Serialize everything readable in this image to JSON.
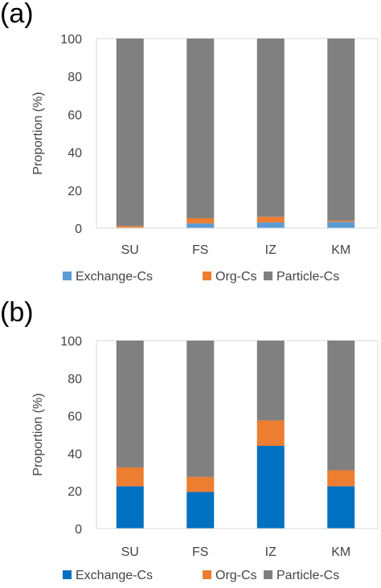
{
  "charts": [
    {
      "panel_label": "(a)",
      "legend": [
        "Exchange-Cs",
        "Org-Cs",
        "Particle-Cs"
      ]
    },
    {
      "panel_label": "(b)",
      "legend": [
        "Exchange-Cs",
        "Org-Cs",
        "Particle-Cs"
      ]
    }
  ],
  "chart_data": [
    {
      "type": "bar",
      "stacked": true,
      "categories": [
        "SU",
        "FS",
        "IZ",
        "KM"
      ],
      "ylabel": "Proportion (%)",
      "ylim": [
        0,
        100
      ],
      "yticks": [
        0,
        20,
        40,
        60,
        80,
        100
      ],
      "series": [
        {
          "name": "Exchange-Cs",
          "color": "#5b9bd5",
          "values": [
            0.3,
            2.5,
            3.0,
            3.3
          ]
        },
        {
          "name": "Org-Cs",
          "color": "#ed7d31",
          "values": [
            0.8,
            2.8,
            3.0,
            0.7
          ]
        },
        {
          "name": "Particle-Cs",
          "color": "#808080",
          "values": [
            98.9,
            94.7,
            94.0,
            96.0
          ]
        }
      ],
      "legend_position": "bottom"
    },
    {
      "type": "bar",
      "stacked": true,
      "categories": [
        "SU",
        "FS",
        "IZ",
        "KM"
      ],
      "ylabel": "Proportion (%)",
      "ylim": [
        0,
        100
      ],
      "yticks": [
        0,
        20,
        40,
        60,
        80,
        100
      ],
      "series": [
        {
          "name": "Exchange-Cs",
          "color": "#0070c0",
          "values": [
            22.5,
            19.5,
            44.0,
            22.5
          ]
        },
        {
          "name": "Org-Cs",
          "color": "#ed7d31",
          "values": [
            10.0,
            8.0,
            13.5,
            8.5
          ]
        },
        {
          "name": "Particle-Cs",
          "color": "#808080",
          "values": [
            67.5,
            72.5,
            42.5,
            69.0
          ]
        }
      ],
      "legend_position": "bottom"
    }
  ]
}
